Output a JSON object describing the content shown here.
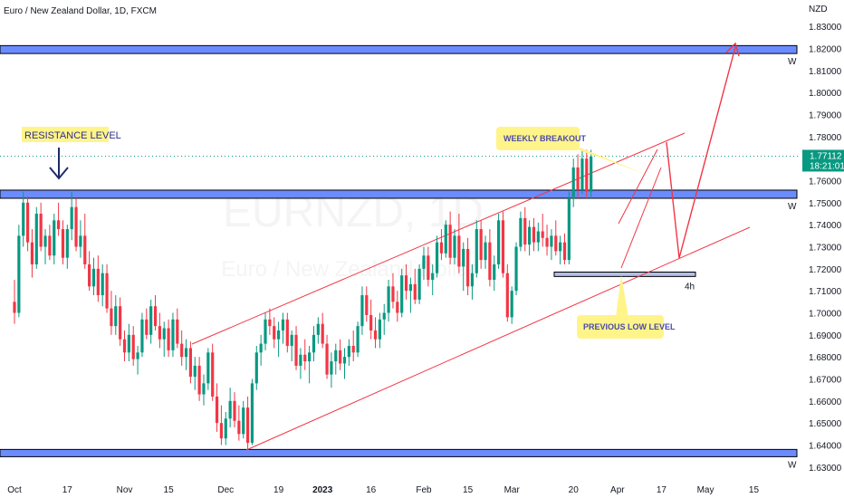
{
  "chart_data": {
    "type": "candlestick",
    "title": "Euro / New Zealand Dollar, 1D, FXCM",
    "watermark": {
      "symbol": "EURNZD",
      "timeframe": "1D",
      "name": "Euro / New Zealand Dollar"
    },
    "currency_label": "NZD",
    "y_range": [
      1.625,
      1.842
    ],
    "y_ticks": [
      "1.83000",
      "1.82000",
      "1.81000",
      "1.80000",
      "1.79000",
      "1.78000",
      "1.76000",
      "1.75000",
      "1.74000",
      "1.73000",
      "1.72000",
      "1.71000",
      "1.70000",
      "1.69000",
      "1.68000",
      "1.67000",
      "1.66000",
      "1.65000",
      "1.64000",
      "1.63000"
    ],
    "x_labels": [
      {
        "label": "Oct",
        "idx": 0
      },
      {
        "label": "17",
        "idx": 12
      },
      {
        "label": "Nov",
        "idx": 25
      },
      {
        "label": "15",
        "idx": 35
      },
      {
        "label": "Dec",
        "idx": 48
      },
      {
        "label": "19",
        "idx": 60
      },
      {
        "label": "2023",
        "idx": 70,
        "bold": true
      },
      {
        "label": "16",
        "idx": 81
      },
      {
        "label": "Feb",
        "idx": 93
      },
      {
        "label": "15",
        "idx": 103
      },
      {
        "label": "Mar",
        "idx": 113
      },
      {
        "label": "20",
        "idx": 127
      },
      {
        "label": "Apr",
        "idx": 137
      },
      {
        "label": "17",
        "idx": 147
      },
      {
        "label": "May",
        "idx": 157
      },
      {
        "label": "15",
        "idx": 168
      }
    ],
    "current_price": {
      "value": 1.77112,
      "label": "1.77112",
      "countdown": "18:21:01",
      "color": "#089981"
    },
    "up_color": "#089981",
    "down_color": "#f23645",
    "candles": [
      [
        1.705,
        1.715,
        1.695,
        1.7
      ],
      [
        1.7,
        1.74,
        1.698,
        1.735
      ],
      [
        1.735,
        1.755,
        1.73,
        1.75
      ],
      [
        1.75,
        1.753,
        1.728,
        1.732
      ],
      [
        1.732,
        1.738,
        1.716,
        1.722
      ],
      [
        1.722,
        1.748,
        1.72,
        1.745
      ],
      [
        1.745,
        1.75,
        1.728,
        1.73
      ],
      [
        1.73,
        1.738,
        1.722,
        1.735
      ],
      [
        1.735,
        1.74,
        1.724,
        1.726
      ],
      [
        1.726,
        1.745,
        1.722,
        1.742
      ],
      [
        1.742,
        1.75,
        1.735,
        1.738
      ],
      [
        1.738,
        1.742,
        1.722,
        1.725
      ],
      [
        1.725,
        1.74,
        1.72,
        1.738
      ],
      [
        1.738,
        1.755,
        1.733,
        1.748
      ],
      [
        1.748,
        1.752,
        1.728,
        1.73
      ],
      [
        1.73,
        1.742,
        1.725,
        1.735
      ],
      [
        1.735,
        1.745,
        1.72,
        1.722
      ],
      [
        1.722,
        1.728,
        1.71,
        1.712
      ],
      [
        1.712,
        1.725,
        1.708,
        1.72
      ],
      [
        1.72,
        1.726,
        1.705,
        1.708
      ],
      [
        1.708,
        1.722,
        1.703,
        1.718
      ],
      [
        1.718,
        1.722,
        1.7,
        1.702
      ],
      [
        1.702,
        1.71,
        1.69,
        1.694
      ],
      [
        1.694,
        1.708,
        1.69,
        1.703
      ],
      [
        1.703,
        1.707,
        1.685,
        1.688
      ],
      [
        1.688,
        1.692,
        1.678,
        1.682
      ],
      [
        1.682,
        1.695,
        1.678,
        1.69
      ],
      [
        1.69,
        1.694,
        1.676,
        1.679
      ],
      [
        1.679,
        1.685,
        1.672,
        1.682
      ],
      [
        1.682,
        1.7,
        1.68,
        1.697
      ],
      [
        1.697,
        1.702,
        1.688,
        1.69
      ],
      [
        1.69,
        1.706,
        1.686,
        1.703
      ],
      [
        1.703,
        1.708,
        1.692,
        1.694
      ],
      [
        1.694,
        1.7,
        1.684,
        1.688
      ],
      [
        1.688,
        1.696,
        1.68,
        1.693
      ],
      [
        1.693,
        1.697,
        1.68,
        1.683
      ],
      [
        1.683,
        1.7,
        1.68,
        1.697
      ],
      [
        1.697,
        1.702,
        1.684,
        1.686
      ],
      [
        1.686,
        1.692,
        1.676,
        1.68
      ],
      [
        1.68,
        1.688,
        1.674,
        1.684
      ],
      [
        1.684,
        1.687,
        1.668,
        1.671
      ],
      [
        1.671,
        1.68,
        1.665,
        1.676
      ],
      [
        1.676,
        1.68,
        1.66,
        1.663
      ],
      [
        1.663,
        1.672,
        1.658,
        1.668
      ],
      [
        1.668,
        1.684,
        1.665,
        1.682
      ],
      [
        1.682,
        1.686,
        1.66,
        1.662
      ],
      [
        1.662,
        1.668,
        1.646,
        1.65
      ],
      [
        1.65,
        1.658,
        1.64,
        1.643
      ],
      [
        1.643,
        1.655,
        1.64,
        1.652
      ],
      [
        1.652,
        1.666,
        1.648,
        1.66
      ],
      [
        1.66,
        1.664,
        1.648,
        1.651
      ],
      [
        1.651,
        1.658,
        1.642,
        1.645
      ],
      [
        1.645,
        1.66,
        1.643,
        1.657
      ],
      [
        1.657,
        1.662,
        1.638,
        1.641
      ],
      [
        1.641,
        1.67,
        1.64,
        1.668
      ],
      [
        1.668,
        1.685,
        1.665,
        1.682
      ],
      [
        1.682,
        1.69,
        1.676,
        1.686
      ],
      [
        1.686,
        1.7,
        1.683,
        1.697
      ],
      [
        1.697,
        1.702,
        1.69,
        1.694
      ],
      [
        1.694,
        1.698,
        1.684,
        1.688
      ],
      [
        1.688,
        1.696,
        1.68,
        1.692
      ],
      [
        1.692,
        1.7,
        1.686,
        1.697
      ],
      [
        1.697,
        1.7,
        1.682,
        1.685
      ],
      [
        1.685,
        1.692,
        1.678,
        1.69
      ],
      [
        1.69,
        1.694,
        1.674,
        1.676
      ],
      [
        1.676,
        1.684,
        1.67,
        1.681
      ],
      [
        1.681,
        1.688,
        1.674,
        1.678
      ],
      [
        1.678,
        1.685,
        1.668,
        1.682
      ],
      [
        1.682,
        1.694,
        1.678,
        1.69
      ],
      [
        1.69,
        1.698,
        1.686,
        1.695
      ],
      [
        1.695,
        1.7,
        1.684,
        1.686
      ],
      [
        1.686,
        1.69,
        1.67,
        1.672
      ],
      [
        1.672,
        1.682,
        1.666,
        1.678
      ],
      [
        1.678,
        1.686,
        1.672,
        1.683
      ],
      [
        1.683,
        1.688,
        1.674,
        1.677
      ],
      [
        1.677,
        1.684,
        1.67,
        1.68
      ],
      [
        1.68,
        1.688,
        1.676,
        1.685
      ],
      [
        1.685,
        1.692,
        1.678,
        1.682
      ],
      [
        1.682,
        1.696,
        1.68,
        1.694
      ],
      [
        1.694,
        1.712,
        1.69,
        1.708
      ],
      [
        1.708,
        1.712,
        1.696,
        1.699
      ],
      [
        1.699,
        1.706,
        1.688,
        1.692
      ],
      [
        1.692,
        1.698,
        1.684,
        1.688
      ],
      [
        1.688,
        1.7,
        1.684,
        1.697
      ],
      [
        1.697,
        1.704,
        1.69,
        1.7
      ],
      [
        1.7,
        1.715,
        1.696,
        1.712
      ],
      [
        1.712,
        1.718,
        1.702,
        1.705
      ],
      [
        1.705,
        1.71,
        1.696,
        1.7
      ],
      [
        1.7,
        1.72,
        1.698,
        1.717
      ],
      [
        1.717,
        1.722,
        1.706,
        1.71
      ],
      [
        1.71,
        1.716,
        1.7,
        1.713
      ],
      [
        1.713,
        1.72,
        1.704,
        1.706
      ],
      [
        1.706,
        1.722,
        1.704,
        1.72
      ],
      [
        1.72,
        1.73,
        1.715,
        1.726
      ],
      [
        1.726,
        1.73,
        1.712,
        1.715
      ],
      [
        1.715,
        1.722,
        1.708,
        1.718
      ],
      [
        1.718,
        1.735,
        1.716,
        1.732
      ],
      [
        1.732,
        1.738,
        1.724,
        1.727
      ],
      [
        1.727,
        1.742,
        1.725,
        1.74
      ],
      [
        1.74,
        1.746,
        1.722,
        1.725
      ],
      [
        1.725,
        1.738,
        1.722,
        1.735
      ],
      [
        1.735,
        1.745,
        1.718,
        1.721
      ],
      [
        1.721,
        1.732,
        1.71,
        1.729
      ],
      [
        1.729,
        1.734,
        1.708,
        1.712
      ],
      [
        1.712,
        1.722,
        1.706,
        1.718
      ],
      [
        1.718,
        1.742,
        1.716,
        1.738
      ],
      [
        1.738,
        1.742,
        1.72,
        1.724
      ],
      [
        1.724,
        1.735,
        1.72,
        1.732
      ],
      [
        1.732,
        1.738,
        1.712,
        1.715
      ],
      [
        1.715,
        1.726,
        1.71,
        1.722
      ],
      [
        1.722,
        1.745,
        1.72,
        1.742
      ],
      [
        1.742,
        1.746,
        1.716,
        1.718
      ],
      [
        1.718,
        1.722,
        1.696,
        1.698
      ],
      [
        1.698,
        1.712,
        1.695,
        1.71
      ],
      [
        1.71,
        1.732,
        1.708,
        1.73
      ],
      [
        1.73,
        1.746,
        1.728,
        1.743
      ],
      [
        1.743,
        1.748,
        1.728,
        1.731
      ],
      [
        1.731,
        1.742,
        1.726,
        1.739
      ],
      [
        1.739,
        1.743,
        1.728,
        1.732
      ],
      [
        1.732,
        1.741,
        1.728,
        1.737
      ],
      [
        1.737,
        1.745,
        1.73,
        1.734
      ],
      [
        1.734,
        1.74,
        1.726,
        1.73
      ],
      [
        1.73,
        1.738,
        1.724,
        1.735
      ],
      [
        1.735,
        1.742,
        1.726,
        1.728
      ],
      [
        1.728,
        1.735,
        1.722,
        1.732
      ],
      [
        1.732,
        1.736,
        1.722,
        1.724
      ],
      [
        1.724,
        1.755,
        1.722,
        1.752
      ],
      [
        1.752,
        1.77,
        1.748,
        1.766
      ],
      [
        1.766,
        1.772,
        1.752,
        1.756
      ],
      [
        1.756,
        1.774,
        1.754,
        1.77
      ],
      [
        1.77,
        1.774,
        1.752,
        1.755
      ],
      [
        1.755,
        1.774,
        1.752,
        1.771
      ]
    ],
    "zones": [
      {
        "name": "upper-zone",
        "top": 1.8213,
        "bottom": 1.8177,
        "label": "W"
      },
      {
        "name": "resistance-zone",
        "top": 1.7557,
        "bottom": 1.752,
        "label": "W"
      },
      {
        "name": "lower-zone",
        "top": 1.638,
        "bottom": 1.6347,
        "label": "W"
      },
      {
        "name": "previous-low-zone",
        "top": 1.7185,
        "bottom": 1.7165,
        "label": "4h"
      }
    ],
    "annotations": {
      "resistance_level": "RESISTANCE LEVEL",
      "weekly_breakout": "WEEKLY BREAKOUT",
      "previous_low_level": "PREVIOUS LOW LEVEL"
    },
    "channel": {
      "upper": [
        [
          1.683,
          1.778
        ]
      ],
      "lower": [
        [
          1.635,
          1.736
        ]
      ]
    }
  }
}
